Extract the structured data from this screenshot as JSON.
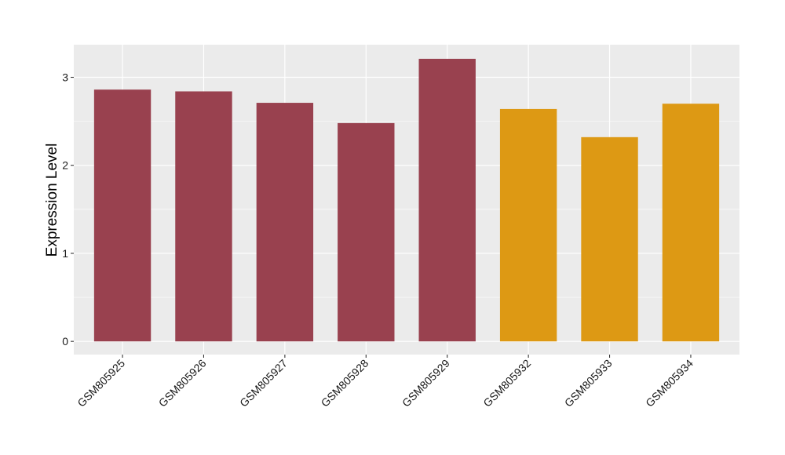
{
  "chart_data": {
    "type": "bar",
    "title": "",
    "xlabel": "",
    "ylabel": "Expression Level",
    "categories": [
      "GSM805925",
      "GSM805926",
      "GSM805927",
      "GSM805928",
      "GSM805929",
      "GSM805932",
      "GSM805933",
      "GSM805934"
    ],
    "values": [
      2.86,
      2.84,
      2.71,
      2.48,
      3.21,
      2.64,
      2.32,
      2.7
    ],
    "bar_colors": [
      "#99414F",
      "#99414F",
      "#99414F",
      "#99414F",
      "#99414F",
      "#DD9914",
      "#DD9914",
      "#DD9914"
    ],
    "y_ticks": [
      0,
      1,
      2,
      3
    ],
    "ylim": [
      -0.15,
      3.37
    ],
    "grid": true,
    "legend": "none",
    "panel_background": "#EBEBEB",
    "grid_color": "#FFFFFF"
  }
}
